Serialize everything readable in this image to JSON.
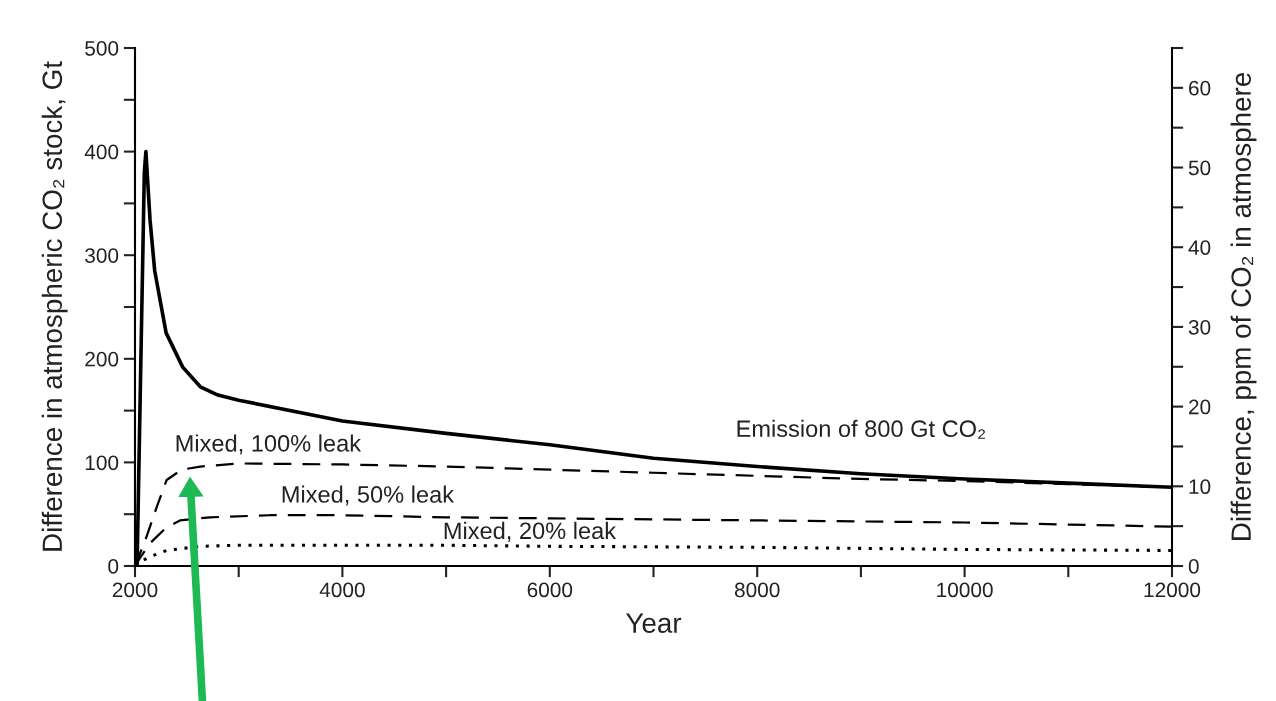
{
  "chart_data": {
    "type": "line",
    "xlabel": "Year",
    "ylabel": "Difference in atmospheric CO₂ stock, Gt",
    "y2label": "Difference, ppm of CO₂ in atmosphere",
    "xlim": [
      2000,
      12000
    ],
    "xticks": [
      2000,
      {
        "value": 3000,
        "label": null
      },
      4000,
      {
        "value": 5000,
        "label": null
      },
      6000,
      {
        "value": 7000,
        "label": null
      },
      8000,
      {
        "value": 9000,
        "label": null
      },
      10000,
      {
        "value": 11000,
        "label": null
      },
      12000
    ],
    "ylim": [
      0,
      500
    ],
    "yticks": [
      0,
      {
        "value": 50,
        "label": null
      },
      100,
      {
        "value": 150,
        "label": null
      },
      200,
      {
        "value": 250,
        "label": null
      },
      300,
      {
        "value": 350,
        "label": null
      },
      400,
      {
        "value": 450,
        "label": null
      },
      500
    ],
    "y2lim": [
      0,
      65
    ],
    "y2ticks": [
      0,
      {
        "value": 5,
        "label": null
      },
      10,
      {
        "value": 15,
        "label": null
      },
      20,
      {
        "value": 25,
        "label": null
      },
      30,
      {
        "value": 35,
        "label": null
      },
      40,
      {
        "value": 45,
        "label": null
      },
      50,
      {
        "value": 55,
        "label": null
      },
      60,
      {
        "value": 65,
        "label": null
      }
    ],
    "grid": false,
    "legend": false,
    "marker": "none",
    "series": [
      {
        "name": "Emission of 800 Gt CO₂",
        "color": "#000000",
        "line_style": "solid",
        "x": [
          2000,
          2020,
          2090,
          2105,
          2145,
          2190,
          2300,
          2460,
          2630,
          2800,
          3000,
          4000,
          5000,
          6000,
          7000,
          8000,
          9000,
          10000,
          11000,
          12000
        ],
        "values": [
          0,
          0,
          380,
          400,
          334,
          285,
          225,
          192,
          173,
          165,
          160,
          140,
          128,
          117,
          104,
          96,
          89,
          84,
          80,
          76
        ]
      },
      {
        "name": "Mixed, 100% leak",
        "color": "#000000",
        "line_style": "dashed",
        "x": [
          2000,
          2100,
          2210,
          2305,
          2450,
          2630,
          3000,
          4000,
          5000,
          6000,
          7000,
          8000,
          9000,
          10000,
          11000,
          12000
        ],
        "values": [
          0,
          25,
          57,
          83,
          93,
          96,
          99,
          98,
          96,
          93,
          90,
          87,
          84,
          82,
          79,
          76
        ]
      },
      {
        "name": "Mixed, 50% leak",
        "color": "#000000",
        "line_style": "dashed",
        "x": [
          2000,
          2050,
          2145,
          2300,
          2434,
          2723,
          3300,
          4000,
          5000,
          6000,
          7000,
          8000,
          9000,
          10000,
          11000,
          12000
        ],
        "values": [
          0,
          8,
          22,
          37,
          44,
          47,
          49,
          49,
          47,
          46,
          45,
          44,
          43,
          42,
          40,
          38
        ]
      },
      {
        "name": "Mixed, 20% leak",
        "color": "#000000",
        "line_style": "dotted",
        "x": [
          2000,
          2050,
          2145,
          2305,
          2627,
          3000,
          4000,
          5000,
          6000,
          8000,
          10000,
          12000
        ],
        "values": [
          0,
          4,
          9,
          15,
          19,
          20,
          20,
          20,
          19,
          18,
          16,
          15
        ]
      }
    ]
  }
}
